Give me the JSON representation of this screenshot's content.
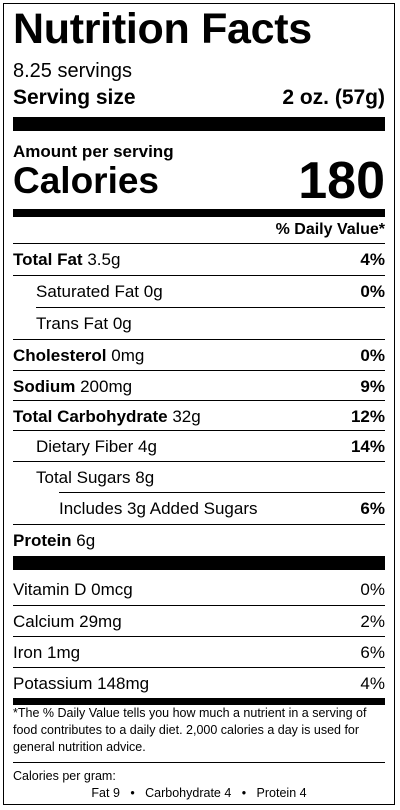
{
  "title": "Nutrition Facts",
  "servings": "8.25 servings",
  "serving_size": {
    "label": "Serving size",
    "value": "2 oz. (57g)"
  },
  "amount_per_serving": "Amount per serving",
  "calories": {
    "label": "Calories",
    "value": "180"
  },
  "dv_header": "% Daily Value*",
  "nutrients": [
    {
      "name": "Total Fat",
      "amount": "3.5g",
      "dv": "4%"
    },
    {
      "name": "Saturated Fat",
      "amount": "0g",
      "dv": "0%"
    },
    {
      "name": "Trans Fat",
      "amount": "0g",
      "dv": ""
    },
    {
      "name": "Cholesterol",
      "amount": "0mg",
      "dv": "0%"
    },
    {
      "name": "Sodium",
      "amount": "200mg",
      "dv": "9%"
    },
    {
      "name": "Total Carbohydrate",
      "amount": "32g",
      "dv": "12%"
    },
    {
      "name": "Dietary Fiber",
      "amount": "4g",
      "dv": "14%"
    },
    {
      "name": "Total Sugars",
      "amount": "8g",
      "dv": ""
    },
    {
      "name": "Includes 3g Added Sugars",
      "amount": "",
      "dv": "6%"
    },
    {
      "name": "Protein",
      "amount": "6g",
      "dv": ""
    }
  ],
  "vitamins": [
    {
      "name": "Vitamin D",
      "amount": "0mcg",
      "dv": "0%"
    },
    {
      "name": "Calcium",
      "amount": "29mg",
      "dv": "2%"
    },
    {
      "name": "Iron",
      "amount": "1mg",
      "dv": "6%"
    },
    {
      "name": "Potassium",
      "amount": "148mg",
      "dv": "4%"
    }
  ],
  "footnote": "*The % Daily Value tells you how much a nutrient in a serving of food contributes to a daily diet. 2,000 calories a day is used for general nutrition advice.",
  "calories_per_gram": {
    "label": "Calories per gram:",
    "fat": "Fat 9",
    "carbohydrate": "Carbohydrate 4",
    "protein": "Protein 4",
    "separator": "•"
  }
}
